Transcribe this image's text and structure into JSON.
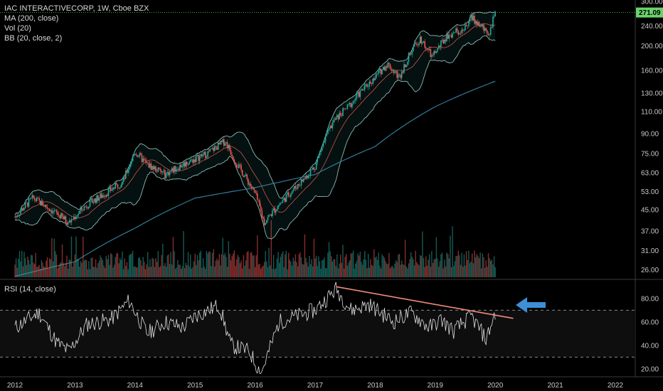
{
  "legend": {
    "title": "IAC INTERACTIVECORP, 1W, Cboe BZX",
    "ma": "MA (200, close)",
    "vol": "Vol (20)",
    "bb": "BB (20, close, 2)",
    "rsi": "RSI (14, close)"
  },
  "colors": {
    "background": "#000000",
    "up": "#26a69a",
    "down": "#ef5350",
    "ma": "#2e7d9a",
    "bb": "#9ad0c8",
    "rsi": "#e0e0e0",
    "trendline": "#f28b7c",
    "arrow": "#3d8fd6",
    "last_price_tag": "#6bd26b"
  },
  "chart_data": [
    {
      "type": "candlestick",
      "title": "IAC INTERACTIVECORP, 1W, Cboe BZX",
      "y_scale": "log",
      "ylim": [
        24,
        300
      ],
      "y_ticks": [
        "300.00",
        "240.00",
        "200.00",
        "160.00",
        "130.00",
        "110.00",
        "90.00",
        "75.00",
        "63.00",
        "53.00",
        "45.00",
        "37.00",
        "31.00",
        "26.00"
      ],
      "last_price": "271.09",
      "x_ticks": [
        "2012",
        "2013",
        "2014",
        "2015",
        "2016",
        "2017",
        "2018",
        "2019",
        "2020",
        "2021",
        "2022"
      ],
      "series": [
        {
          "name": "MA (200, close)",
          "type": "line"
        },
        {
          "name": "BB (20, close, 2)",
          "type": "band"
        },
        {
          "name": "Vol (20)",
          "type": "bar"
        }
      ],
      "price_path": [
        [
          "2012.0",
          42
        ],
        [
          "2012.3",
          50
        ],
        [
          "2012.6",
          45
        ],
        [
          "2012.9",
          40
        ],
        [
          "2013.2",
          47
        ],
        [
          "2013.5",
          52
        ],
        [
          "2013.8",
          58
        ],
        [
          "2014.0",
          76
        ],
        [
          "2014.2",
          68
        ],
        [
          "2014.5",
          62
        ],
        [
          "2014.8",
          68
        ],
        [
          "2015.2",
          75
        ],
        [
          "2015.5",
          84
        ],
        [
          "2015.7",
          68
        ],
        [
          "2016.0",
          52
        ],
        [
          "2016.15",
          40
        ],
        [
          "2016.5",
          50
        ],
        [
          "2016.8",
          59
        ],
        [
          "2017.0",
          67
        ],
        [
          "2017.3",
          100
        ],
        [
          "2017.6",
          118
        ],
        [
          "2017.8",
          135
        ],
        [
          "2018.0",
          150
        ],
        [
          "2018.2",
          170
        ],
        [
          "2018.4",
          150
        ],
        [
          "2018.6",
          190
        ],
        [
          "2018.75",
          215
        ],
        [
          "2018.95",
          180
        ],
        [
          "2019.2",
          220
        ],
        [
          "2019.5",
          235
        ],
        [
          "2019.6",
          260
        ],
        [
          "2019.75",
          240
        ],
        [
          "2019.9",
          225
        ],
        [
          "2020.0",
          271
        ]
      ],
      "ma_path": [
        [
          "2012.0",
          24.5
        ],
        [
          "2013.0",
          28
        ],
        [
          "2014.0",
          38
        ],
        [
          "2015.0",
          50
        ],
        [
          "2016.0",
          55
        ],
        [
          "2017.0",
          62
        ],
        [
          "2018.0",
          80
        ],
        [
          "2019.0",
          115
        ],
        [
          "2019.5",
          130
        ],
        [
          "2020.0",
          145
        ]
      ]
    },
    {
      "type": "line",
      "title": "RSI (14, close)",
      "ylim": [
        15,
        95
      ],
      "y_ticks": [
        "80.00",
        "60.00",
        "40.00",
        "20.00"
      ],
      "levels": [
        70,
        30
      ],
      "rsi_path": [
        [
          "2012.0",
          55
        ],
        [
          "2012.4",
          68
        ],
        [
          "2012.7",
          42
        ],
        [
          "2012.9",
          35
        ],
        [
          "2013.2",
          58
        ],
        [
          "2013.6",
          62
        ],
        [
          "2013.9",
          78
        ],
        [
          "2014.2",
          50
        ],
        [
          "2014.5",
          60
        ],
        [
          "2014.8",
          55
        ],
        [
          "2015.0",
          65
        ],
        [
          "2015.4",
          74
        ],
        [
          "2015.6",
          40
        ],
        [
          "2015.9",
          35
        ],
        [
          "2016.1",
          16
        ],
        [
          "2016.4",
          60
        ],
        [
          "2016.7",
          65
        ],
        [
          "2017.0",
          70
        ],
        [
          "2017.35",
          88
        ],
        [
          "2017.6",
          70
        ],
        [
          "2017.9",
          75
        ],
        [
          "2018.3",
          60
        ],
        [
          "2018.6",
          68
        ],
        [
          "2018.9",
          55
        ],
        [
          "2019.1",
          62
        ],
        [
          "2019.3",
          52
        ],
        [
          "2019.6",
          65
        ],
        [
          "2019.85",
          45
        ],
        [
          "2020.0",
          68
        ]
      ],
      "trendline": [
        [
          "2017.35",
          90
        ],
        [
          "2020.3",
          63
        ]
      ]
    }
  ]
}
